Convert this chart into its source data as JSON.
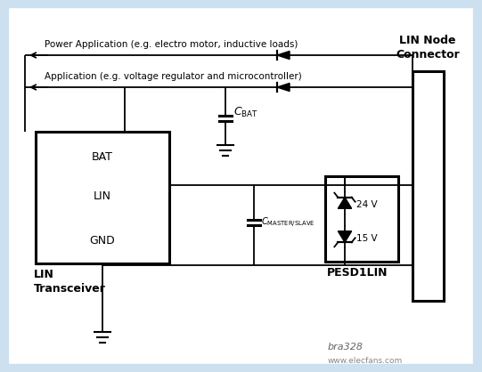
{
  "bg_color": "#cce0f0",
  "inner_bg": "#ffffff",
  "title_power": "Power Application (e.g. electro motor, inductive loads)",
  "title_app": "Application (e.g. voltage regulator and microcontroller)",
  "label_bat": "BAT",
  "label_lin": "LIN",
  "label_gnd": "GND",
  "label_pesd": "PESD1LIN",
  "label_24v": "24 V",
  "label_15v": "15 V",
  "label_bra": "bra328",
  "label_elec": "www.elecfans.com",
  "line_color": "#000000",
  "text_color": "#000000",
  "lw": 1.3,
  "lw_thick": 2.2
}
